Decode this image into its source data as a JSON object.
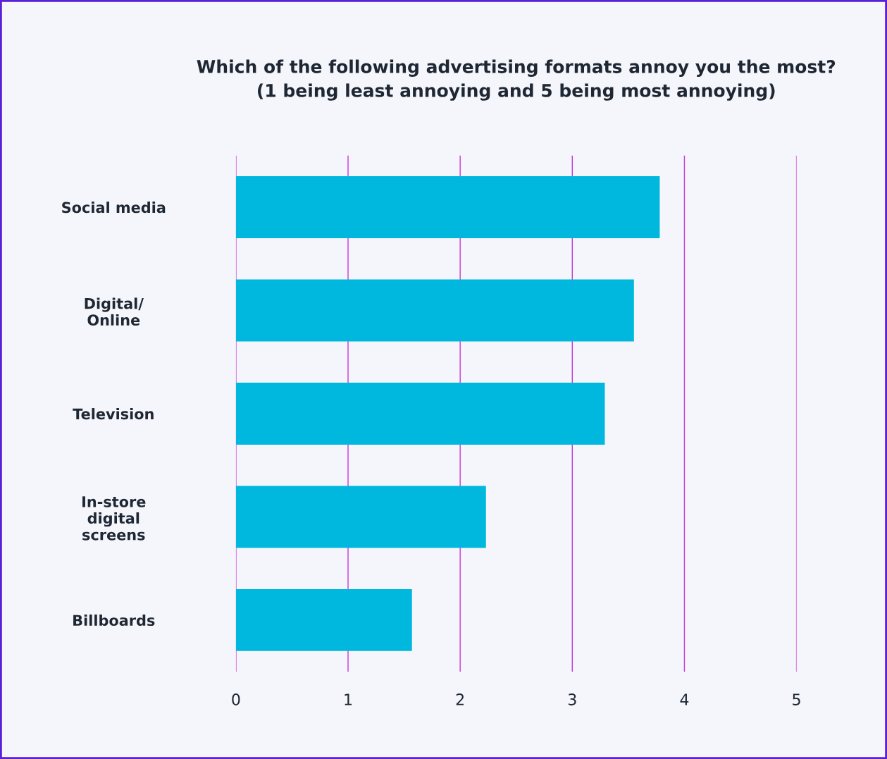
{
  "chart_data": {
    "type": "bar",
    "orientation": "horizontal",
    "title": "Which of the following advertising formats annoy you the most?\n(1 being least annoying and 5 being most annoying)",
    "categories": [
      "Social media",
      "Digital/\nOnline",
      "Television",
      "In-store\ndigital\nscreens",
      "Billboards"
    ],
    "values": [
      3.78,
      3.55,
      3.29,
      2.23,
      1.57
    ],
    "color": "#00b8de",
    "xlim": [
      0,
      5
    ],
    "xticks": [
      0,
      1,
      2,
      3,
      4,
      5
    ],
    "grid": "x"
  }
}
